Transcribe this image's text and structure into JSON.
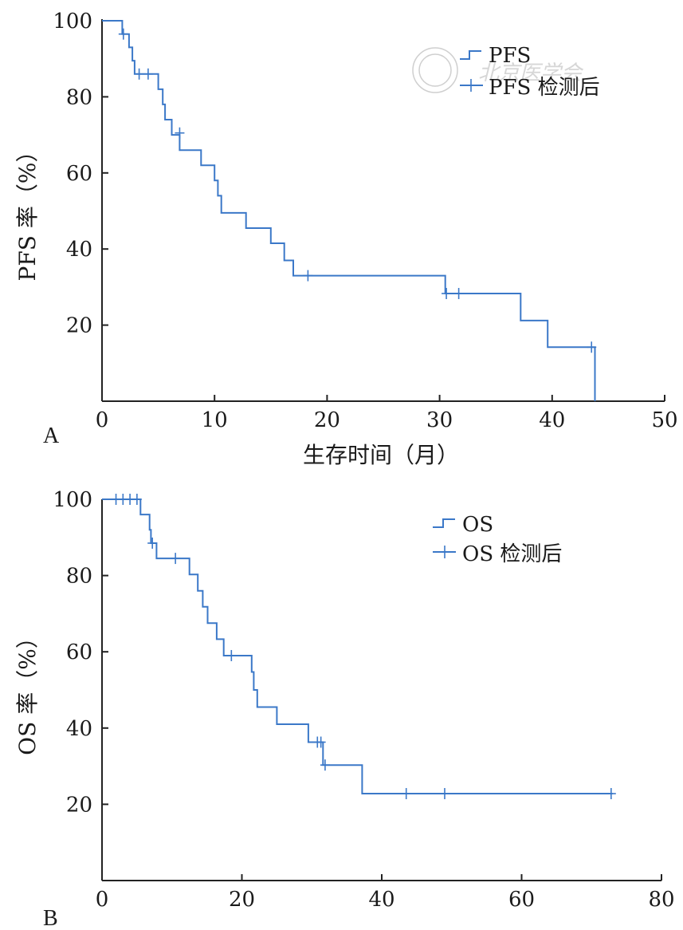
{
  "chart_data": [
    {
      "type": "line",
      "panel_label": "A",
      "xlabel": "生存时间（月）",
      "ylabel": "PFS 率（%）",
      "xlim": [
        0,
        50
      ],
      "ylim": [
        0,
        100
      ],
      "xticks": [
        0,
        10,
        20,
        30,
        40,
        50
      ],
      "yticks": [
        20,
        40,
        60,
        80,
        100
      ],
      "legend_position": "top-right",
      "legend": [
        "PFS",
        "PFS 检测后"
      ],
      "series": [
        {
          "name": "PFS",
          "step": [
            [
              0,
              100
            ],
            [
              1.8,
              100
            ],
            [
              1.8,
              96.5
            ],
            [
              2.4,
              96.5
            ],
            [
              2.4,
              93
            ],
            [
              2.7,
              93
            ],
            [
              2.7,
              89.5
            ],
            [
              2.9,
              89.5
            ],
            [
              2.9,
              86
            ],
            [
              5.0,
              86
            ],
            [
              5.0,
              82
            ],
            [
              5.4,
              82
            ],
            [
              5.4,
              78
            ],
            [
              5.6,
              78
            ],
            [
              5.6,
              74
            ],
            [
              6.2,
              74
            ],
            [
              6.2,
              70
            ],
            [
              6.9,
              70
            ],
            [
              6.9,
              66
            ],
            [
              8.8,
              66
            ],
            [
              8.8,
              62
            ],
            [
              10.0,
              62
            ],
            [
              10.0,
              58
            ],
            [
              10.3,
              58
            ],
            [
              10.3,
              54
            ],
            [
              10.6,
              54
            ],
            [
              10.6,
              49.5
            ],
            [
              12.8,
              49.5
            ],
            [
              12.8,
              45.5
            ],
            [
              15.0,
              45.5
            ],
            [
              15.0,
              41.5
            ],
            [
              16.2,
              41.5
            ],
            [
              16.2,
              37
            ],
            [
              17.0,
              37
            ],
            [
              17.0,
              33
            ],
            [
              30.5,
              33
            ],
            [
              30.5,
              28.3
            ],
            [
              37.2,
              28.3
            ],
            [
              37.2,
              21.2
            ],
            [
              39.6,
              21.2
            ],
            [
              39.6,
              14.2
            ],
            [
              43.8,
              14.2
            ],
            [
              43.8,
              0
            ]
          ],
          "censored": [
            [
              1.9,
              96.5
            ],
            [
              3.3,
              86
            ],
            [
              4.1,
              86
            ],
            [
              6.9,
              70.5
            ],
            [
              18.3,
              33
            ],
            [
              30.6,
              28.3
            ],
            [
              31.7,
              28.3
            ],
            [
              43.5,
              14.2
            ]
          ]
        }
      ]
    },
    {
      "type": "line",
      "panel_label": "B",
      "xlabel": "",
      "ylabel": "OS 率（%）",
      "xlim": [
        0,
        80
      ],
      "ylim": [
        0,
        100
      ],
      "xticks": [
        0,
        20,
        40,
        60,
        80
      ],
      "yticks": [
        20,
        40,
        60,
        80,
        100
      ],
      "legend_position": "top-right",
      "legend": [
        "OS",
        "OS 检测后"
      ],
      "series": [
        {
          "name": "OS",
          "step": [
            [
              0,
              100
            ],
            [
              5.5,
              100
            ],
            [
              5.5,
              96
            ],
            [
              6.8,
              96
            ],
            [
              6.8,
              92
            ],
            [
              7.0,
              92
            ],
            [
              7.0,
              88.5
            ],
            [
              7.8,
              88.5
            ],
            [
              7.8,
              84.5
            ],
            [
              12.5,
              84.5
            ],
            [
              12.5,
              80.3
            ],
            [
              13.7,
              80.3
            ],
            [
              13.7,
              76
            ],
            [
              14.4,
              76
            ],
            [
              14.4,
              71.8
            ],
            [
              15.1,
              71.8
            ],
            [
              15.1,
              67.5
            ],
            [
              16.4,
              67.5
            ],
            [
              16.4,
              63.3
            ],
            [
              17.4,
              63.3
            ],
            [
              17.4,
              59
            ],
            [
              21.4,
              59
            ],
            [
              21.4,
              54.7
            ],
            [
              21.7,
              54.7
            ],
            [
              21.7,
              50
            ],
            [
              22.2,
              50
            ],
            [
              22.2,
              45.5
            ],
            [
              25.0,
              45.5
            ],
            [
              25.0,
              41
            ],
            [
              29.5,
              41
            ],
            [
              29.5,
              36.3
            ],
            [
              31.6,
              36.3
            ],
            [
              31.6,
              30.3
            ],
            [
              37.2,
              30.3
            ],
            [
              37.2,
              22.8
            ],
            [
              73,
              22.8
            ]
          ],
          "censored": [
            [
              2,
              100
            ],
            [
              3,
              100
            ],
            [
              4,
              100
            ],
            [
              5,
              100
            ],
            [
              7.2,
              88.5
            ],
            [
              10.5,
              84.5
            ],
            [
              18.5,
              59
            ],
            [
              30.8,
              36.3
            ],
            [
              31.3,
              36.3
            ],
            [
              31.9,
              30.3
            ],
            [
              43.5,
              22.8
            ],
            [
              49,
              22.8
            ],
            [
              72.8,
              22.8
            ]
          ]
        }
      ]
    }
  ]
}
